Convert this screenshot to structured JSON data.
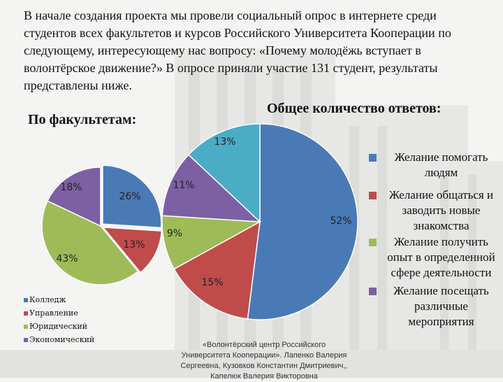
{
  "intro_text": "В начале создания проекта мы провели социальный опрос в интернете среди студентов всех факультетов и курсов Российского Университета Кооперации по следующему, интересующему нас вопросу: «Почему молодёжь вступает в волонтёрское движение?» В опросе приняли участие 131 студент, результаты представлены ниже.",
  "footnote": "«Волонтёрский центр Российского Университета Кооперации». Лапенко Валерия Сергеевна, Кузовков Константин Дмитриевич,, Капелюк Валерия Викторовна",
  "colors": {
    "blue": "#4a7ab5",
    "red": "#c04b4b",
    "green": "#9ebb58",
    "purple": "#7c60a3",
    "teal": "#4bacc6"
  },
  "chart_data": [
    {
      "type": "pie",
      "title": "По факультетам:",
      "categories": [
        "Колледж",
        "Управление",
        "Юридический",
        "Экономический"
      ],
      "values": [
        26,
        13,
        43,
        18
      ],
      "labels": [
        "26%",
        "13%",
        "43%",
        "18%"
      ],
      "colors": [
        "#4a7ab5",
        "#c04b4b",
        "#9ebb58",
        "#7c60a3"
      ],
      "legend": "bottom-left"
    },
    {
      "type": "pie",
      "title": "Общее количество ответов:",
      "categories": [
        "Желание помогать людям",
        "Желание общаться и заводить новые знакомства",
        "Желание получить опыт в определенной сфере деятельности",
        "Желание посещать различные мероприятия",
        ""
      ],
      "values": [
        52,
        15,
        9,
        11,
        13
      ],
      "labels": [
        "52%",
        "15%",
        "9%",
        "11%",
        "13%"
      ],
      "colors": [
        "#4a7ab5",
        "#c04b4b",
        "#9ebb58",
        "#7c60a3",
        "#4bacc6"
      ],
      "legend": "right"
    }
  ]
}
